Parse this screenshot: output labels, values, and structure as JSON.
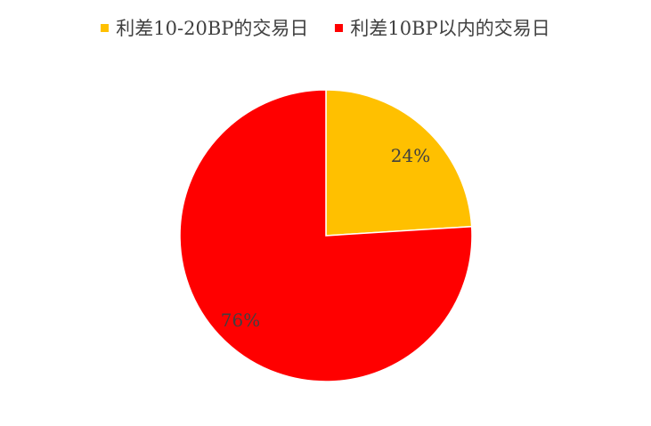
{
  "chart_data": {
    "type": "pie",
    "title": "",
    "legend_position": "top",
    "slices": [
      {
        "name": "利差10-20BP的交易日",
        "value": 24,
        "label": "24%",
        "color": "#FFC000"
      },
      {
        "name": "利差10BP以内的交易日",
        "value": 76,
        "label": "76%",
        "color": "#FF0000"
      }
    ]
  }
}
